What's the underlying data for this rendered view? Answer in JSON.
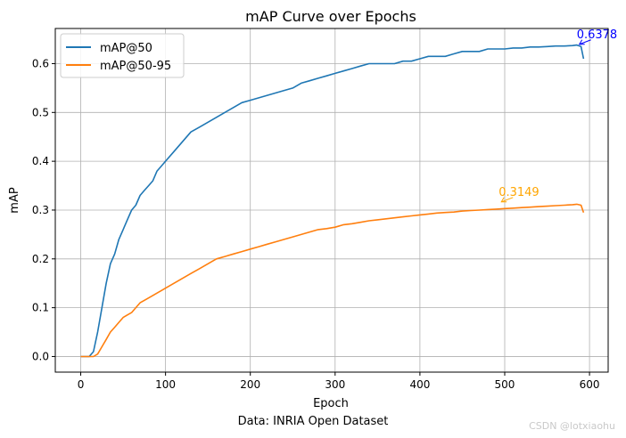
{
  "chart_data": {
    "type": "line",
    "title": "mAP Curve over Epochs",
    "xlabel": "Epoch",
    "ylabel": "mAP",
    "xlim": [
      -30,
      622
    ],
    "ylim": [
      -0.032,
      0.672
    ],
    "x_ticks": [
      0,
      100,
      200,
      300,
      400,
      500,
      600
    ],
    "y_ticks": [
      0.0,
      0.1,
      0.2,
      0.3,
      0.4,
      0.5,
      0.6
    ],
    "x_tick_labels": [
      "0",
      "100",
      "200",
      "300",
      "400",
      "500",
      "600"
    ],
    "y_tick_labels": [
      "0.0",
      "0.1",
      "0.2",
      "0.3",
      "0.4",
      "0.5",
      "0.6"
    ],
    "grid": true,
    "legend": "top-left",
    "series": [
      {
        "name": "mAP@50",
        "color": "#1f77b4",
        "x": [
          0,
          10,
          15,
          20,
          25,
          30,
          35,
          40,
          45,
          50,
          55,
          60,
          65,
          70,
          75,
          80,
          85,
          90,
          95,
          100,
          110,
          120,
          130,
          140,
          150,
          160,
          170,
          180,
          190,
          200,
          210,
          220,
          230,
          240,
          250,
          260,
          270,
          280,
          290,
          300,
          310,
          320,
          330,
          340,
          350,
          360,
          370,
          380,
          390,
          400,
          410,
          420,
          430,
          440,
          450,
          460,
          470,
          480,
          490,
          500,
          510,
          520,
          530,
          540,
          550,
          560,
          570,
          580,
          585,
          590,
          593
        ],
        "y": [
          0.0,
          0.0,
          0.01,
          0.05,
          0.1,
          0.15,
          0.19,
          0.21,
          0.24,
          0.26,
          0.28,
          0.3,
          0.31,
          0.33,
          0.34,
          0.35,
          0.36,
          0.38,
          0.39,
          0.4,
          0.42,
          0.44,
          0.46,
          0.47,
          0.48,
          0.49,
          0.5,
          0.51,
          0.52,
          0.525,
          0.53,
          0.535,
          0.54,
          0.545,
          0.55,
          0.56,
          0.565,
          0.57,
          0.575,
          0.58,
          0.585,
          0.59,
          0.595,
          0.6,
          0.6,
          0.6,
          0.6,
          0.605,
          0.605,
          0.61,
          0.615,
          0.615,
          0.615,
          0.62,
          0.625,
          0.625,
          0.625,
          0.63,
          0.63,
          0.63,
          0.632,
          0.632,
          0.634,
          0.634,
          0.635,
          0.636,
          0.636,
          0.637,
          0.638,
          0.635,
          0.61
        ],
        "annotation": {
          "text": "0.6378",
          "x": 587,
          "y": 0.6378,
          "color": "#0000ff"
        }
      },
      {
        "name": "mAP@50-95",
        "color": "#ff7f0e",
        "x": [
          0,
          10,
          15,
          20,
          25,
          30,
          35,
          40,
          45,
          50,
          55,
          60,
          65,
          70,
          75,
          80,
          85,
          90,
          95,
          100,
          110,
          120,
          130,
          140,
          150,
          160,
          170,
          180,
          190,
          200,
          210,
          220,
          230,
          240,
          250,
          260,
          270,
          280,
          290,
          300,
          310,
          320,
          330,
          340,
          350,
          360,
          370,
          380,
          390,
          400,
          410,
          420,
          430,
          440,
          450,
          460,
          470,
          480,
          490,
          500,
          510,
          520,
          530,
          540,
          550,
          560,
          570,
          580,
          585,
          590,
          593
        ],
        "y": [
          0.0,
          0.0,
          0.0,
          0.005,
          0.02,
          0.035,
          0.05,
          0.06,
          0.07,
          0.08,
          0.085,
          0.09,
          0.1,
          0.11,
          0.115,
          0.12,
          0.125,
          0.13,
          0.135,
          0.14,
          0.15,
          0.16,
          0.17,
          0.18,
          0.19,
          0.2,
          0.205,
          0.21,
          0.215,
          0.22,
          0.225,
          0.23,
          0.235,
          0.24,
          0.245,
          0.25,
          0.255,
          0.26,
          0.262,
          0.265,
          0.27,
          0.272,
          0.275,
          0.278,
          0.28,
          0.282,
          0.284,
          0.286,
          0.288,
          0.29,
          0.292,
          0.294,
          0.295,
          0.296,
          0.298,
          0.299,
          0.3,
          0.301,
          0.302,
          0.303,
          0.304,
          0.305,
          0.306,
          0.307,
          0.308,
          0.309,
          0.31,
          0.311,
          0.312,
          0.31,
          0.295
        ],
        "annotation": {
          "text": "0.3149",
          "x": 495,
          "y": 0.3149,
          "color": "#ffa500"
        }
      }
    ],
    "caption": "Data: INRIA Open Dataset",
    "watermark": "CSDN @lotxiaohu"
  }
}
